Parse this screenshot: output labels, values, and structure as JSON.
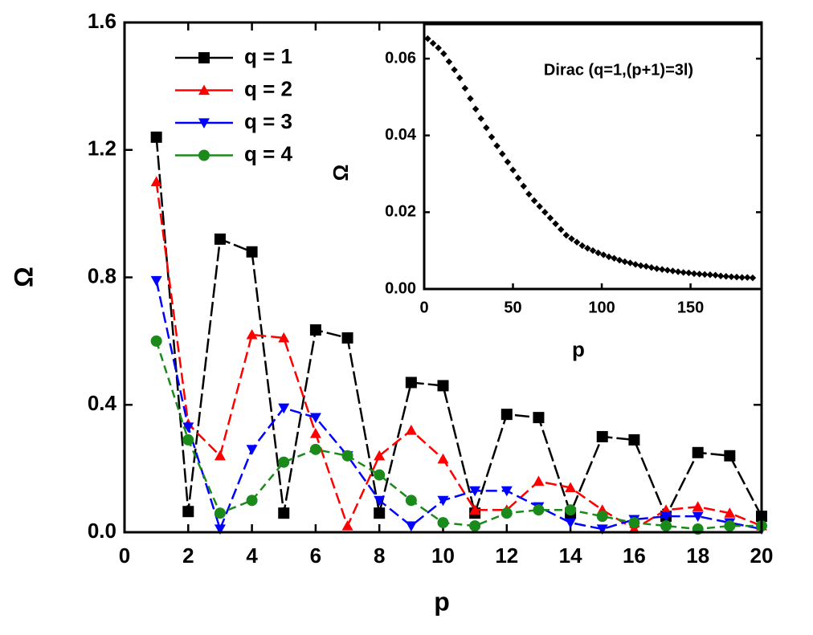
{
  "chart_data": [
    {
      "type": "line",
      "xlabel": "p",
      "ylabel": "Ω",
      "x": [
        1,
        2,
        3,
        4,
        5,
        6,
        7,
        8,
        9,
        10,
        11,
        12,
        13,
        14,
        15,
        16,
        17,
        18,
        19,
        20
      ],
      "xlim": [
        0,
        20
      ],
      "xticks": [
        0,
        2,
        4,
        6,
        8,
        10,
        12,
        14,
        16,
        18,
        20
      ],
      "ylim": [
        0,
        1.6
      ],
      "yticks": [
        {
          "value": 0,
          "label": "0.0"
        },
        0.4,
        0.8,
        1.2,
        1.6
      ],
      "legend": "upper left",
      "series": [
        {
          "name": "q = 1",
          "color": "#000000",
          "marker": "square",
          "values": [
            1.24,
            0.065,
            0.92,
            0.88,
            0.06,
            0.635,
            0.61,
            0.06,
            0.47,
            0.46,
            0.06,
            0.37,
            0.36,
            0.06,
            0.3,
            0.29,
            0.05,
            0.25,
            0.24,
            0.05
          ]
        },
        {
          "name": "q = 2",
          "color": "#ff0000",
          "marker": "triangle-up",
          "values": [
            1.1,
            0.34,
            0.24,
            0.62,
            0.61,
            0.31,
            0.02,
            0.24,
            0.32,
            0.23,
            0.07,
            0.07,
            0.16,
            0.14,
            0.07,
            0.01,
            0.07,
            0.08,
            0.06,
            0.02
          ]
        },
        {
          "name": "q = 3",
          "color": "#0000ff",
          "marker": "triangle-down",
          "values": [
            0.79,
            0.33,
            0.01,
            0.26,
            0.39,
            0.36,
            0.24,
            0.1,
            0.02,
            0.1,
            0.13,
            0.13,
            0.08,
            0.03,
            0.01,
            0.04,
            0.05,
            0.05,
            0.03,
            0.01
          ]
        },
        {
          "name": "q = 4",
          "color": "#1a8a1a",
          "marker": "circle",
          "values": [
            0.6,
            0.29,
            0.06,
            0.1,
            0.22,
            0.26,
            0.24,
            0.18,
            0.1,
            0.03,
            0.02,
            0.06,
            0.07,
            0.07,
            0.05,
            0.03,
            0.02,
            0.01,
            0.02,
            0.02
          ]
        }
      ]
    },
    {
      "type": "scatter",
      "xlabel": "p",
      "ylabel": "Ω",
      "annotation": "Dirac (q=1,(p+1)=3l)",
      "xlim": [
        0,
        190
      ],
      "xticks": [
        0,
        50,
        100,
        150
      ],
      "ylim": [
        0,
        0.069
      ],
      "yticks": [
        {
          "value": 0,
          "label": "0.00"
        },
        {
          "value": 0.02,
          "label": "0.02"
        },
        {
          "value": 0.04,
          "label": "0.04"
        },
        {
          "value": 0.06,
          "label": "0.06"
        }
      ],
      "color": "#000000",
      "x": [
        2,
        5,
        8,
        11,
        14,
        17,
        20,
        23,
        26,
        29,
        32,
        35,
        38,
        41,
        44,
        47,
        50,
        53,
        56,
        59,
        62,
        65,
        68,
        71,
        74,
        77,
        80,
        83,
        86,
        89,
        92,
        95,
        98,
        101,
        104,
        107,
        110,
        113,
        116,
        119,
        122,
        125,
        128,
        131,
        134,
        137,
        140,
        143,
        146,
        149,
        152,
        155,
        158,
        161,
        164,
        167,
        170,
        173,
        176,
        179,
        182,
        185
      ],
      "values": [
        0.0652,
        0.064,
        0.0628,
        0.0613,
        0.0592,
        0.0571,
        0.055,
        0.0523,
        0.0496,
        0.0469,
        0.0444,
        0.042,
        0.0396,
        0.0373,
        0.0352,
        0.0331,
        0.031,
        0.0289,
        0.0268,
        0.0247,
        0.023,
        0.0215,
        0.02,
        0.0185,
        0.017,
        0.0155,
        0.014,
        0.0131,
        0.0122,
        0.0113,
        0.0106,
        0.01,
        0.0094,
        0.0089,
        0.0084,
        0.008,
        0.0075,
        0.0071,
        0.0068,
        0.0064,
        0.0061,
        0.0059,
        0.0056,
        0.0053,
        0.0051,
        0.0049,
        0.0047,
        0.0045,
        0.0043,
        0.0042,
        0.004,
        0.0039,
        0.0038,
        0.0037,
        0.0036,
        0.0034,
        0.0033,
        0.0032,
        0.0031,
        0.003,
        0.003,
        0.0029
      ]
    }
  ]
}
